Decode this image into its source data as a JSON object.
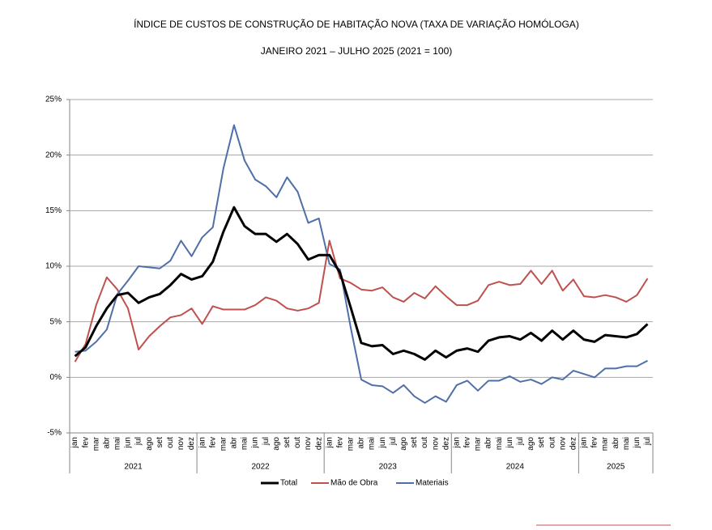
{
  "chart_data": {
    "type": "line",
    "title": "ÍNDICE DE CUSTOS DE CONSTRUÇÃO DE HABITAÇÃO NOVA (TAXA DE VARIAÇÃO HOMÓLOGA)",
    "subtitle": "JANEIRO 2021 – JULHO 2025 (2021 = 100)",
    "categories": [
      "jan",
      "fev",
      "mar",
      "abr",
      "mai",
      "jun",
      "jul",
      "ago",
      "set",
      "out",
      "nov",
      "dez",
      "jan",
      "fev",
      "mar",
      "abr",
      "mai",
      "jun",
      "jul",
      "ago",
      "set",
      "out",
      "nov",
      "dez",
      "jan",
      "fev",
      "mar",
      "abr",
      "mai",
      "jun",
      "jul",
      "ago",
      "set",
      "out",
      "nov",
      "dez",
      "jan",
      "fev",
      "mar",
      "abr",
      "mai",
      "jun",
      "jul",
      "ago",
      "set",
      "out",
      "nov",
      "dez",
      "jan",
      "fev",
      "mar",
      "abr",
      "mai",
      "jun",
      "jul"
    ],
    "years": [
      "2021",
      "2022",
      "2023",
      "2024",
      "2025"
    ],
    "series": [
      {
        "name": "Total",
        "color": "#000000",
        "values": [
          1.9,
          2.7,
          4.6,
          6.2,
          7.4,
          7.6,
          6.7,
          7.2,
          7.5,
          8.3,
          9.3,
          8.8,
          9.1,
          10.4,
          13.1,
          15.3,
          13.6,
          12.9,
          12.9,
          12.2,
          12.9,
          12.0,
          10.6,
          11.0,
          11.0,
          9.4,
          6.3,
          3.1,
          2.8,
          2.9,
          2.1,
          2.4,
          2.1,
          1.6,
          2.4,
          1.8,
          2.4,
          2.6,
          2.3,
          3.3,
          3.6,
          3.7,
          3.4,
          4.0,
          3.3,
          4.2,
          3.4,
          4.2,
          3.4,
          3.2,
          3.8,
          3.7,
          3.6,
          3.9,
          4.8
        ]
      },
      {
        "name": "Mão de Obra",
        "color": "#c0504d",
        "values": [
          1.4,
          3.0,
          6.5,
          9.0,
          7.9,
          6.2,
          2.5,
          3.7,
          4.6,
          5.4,
          5.6,
          6.2,
          4.8,
          6.4,
          6.1,
          6.1,
          6.1,
          6.5,
          7.2,
          6.9,
          6.2,
          6.0,
          6.2,
          6.7,
          12.3,
          8.9,
          8.5,
          7.9,
          7.8,
          8.1,
          7.2,
          6.8,
          7.6,
          7.1,
          8.2,
          7.3,
          6.5,
          6.5,
          6.9,
          8.3,
          8.6,
          8.3,
          8.4,
          9.6,
          8.4,
          9.6,
          7.8,
          8.8,
          7.3,
          7.2,
          7.4,
          7.2,
          6.8,
          7.4,
          8.9
        ]
      },
      {
        "name": "Materiais",
        "color": "#4f6fa8",
        "values": [
          2.3,
          2.4,
          3.2,
          4.3,
          7.5,
          8.7,
          10.0,
          9.9,
          9.8,
          10.5,
          12.3,
          10.9,
          12.6,
          13.5,
          18.8,
          22.7,
          19.5,
          17.8,
          17.2,
          16.2,
          18.0,
          16.7,
          13.9,
          14.3,
          10.2,
          9.7,
          4.5,
          -0.2,
          -0.7,
          -0.8,
          -1.4,
          -0.7,
          -1.7,
          -2.3,
          -1.7,
          -2.2,
          -0.7,
          -0.3,
          -1.2,
          -0.3,
          -0.3,
          0.1,
          -0.4,
          -0.2,
          -0.6,
          0.0,
          -0.2,
          0.6,
          0.3,
          0.0,
          0.8,
          0.8,
          1.0,
          1.0,
          1.5
        ]
      }
    ],
    "ylim": [
      -5,
      25
    ],
    "yticks": [
      {
        "value": -5,
        "label": "-5%"
      },
      {
        "value": 0,
        "label": "0%"
      },
      {
        "value": 5,
        "label": "5%"
      },
      {
        "value": 10,
        "label": "10%"
      },
      {
        "value": 15,
        "label": "15%"
      },
      {
        "value": 20,
        "label": "20%"
      },
      {
        "value": 25,
        "label": "25%"
      }
    ],
    "grid": true
  }
}
